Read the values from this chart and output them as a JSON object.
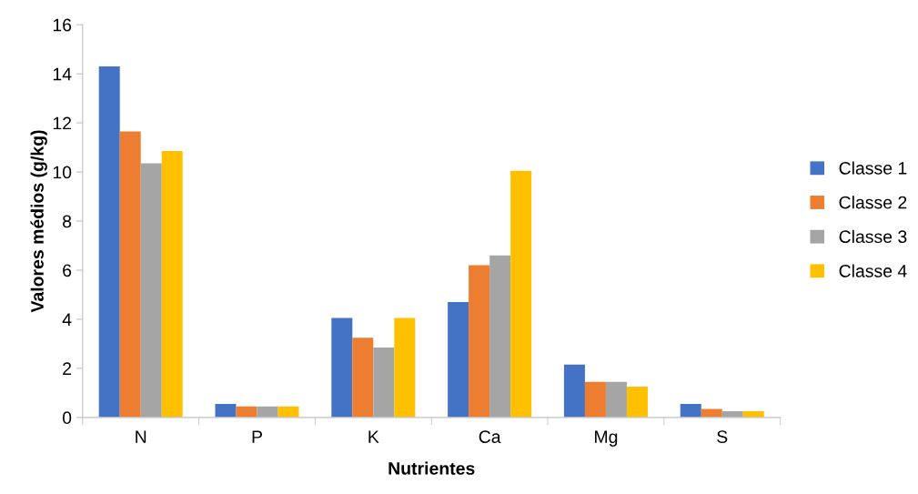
{
  "chart_data": {
    "type": "bar",
    "xlabel": "Nutrientes",
    "ylabel": "Valores médios (g/kg)",
    "categories": [
      "N",
      "P",
      "K",
      "Ca",
      "Mg",
      "S"
    ],
    "series": [
      {
        "name": "Classe 1",
        "color": "#4472c4",
        "values": [
          14.3,
          0.55,
          4.05,
          4.7,
          2.15,
          0.55
        ]
      },
      {
        "name": "Classe 2",
        "color": "#ed7d31",
        "values": [
          11.65,
          0.45,
          3.25,
          6.2,
          1.45,
          0.35
        ]
      },
      {
        "name": "Classe 3",
        "color": "#a5a5a5",
        "values": [
          10.35,
          0.45,
          2.85,
          6.6,
          1.45,
          0.25
        ]
      },
      {
        "name": "Classe 4",
        "color": "#ffc000",
        "values": [
          10.85,
          0.45,
          4.05,
          10.05,
          1.25,
          0.25
        ]
      }
    ],
    "ylim": [
      0,
      16
    ],
    "yticks": [
      0,
      2,
      4,
      6,
      8,
      10,
      12,
      14,
      16
    ],
    "grid": false,
    "legend": "right"
  }
}
